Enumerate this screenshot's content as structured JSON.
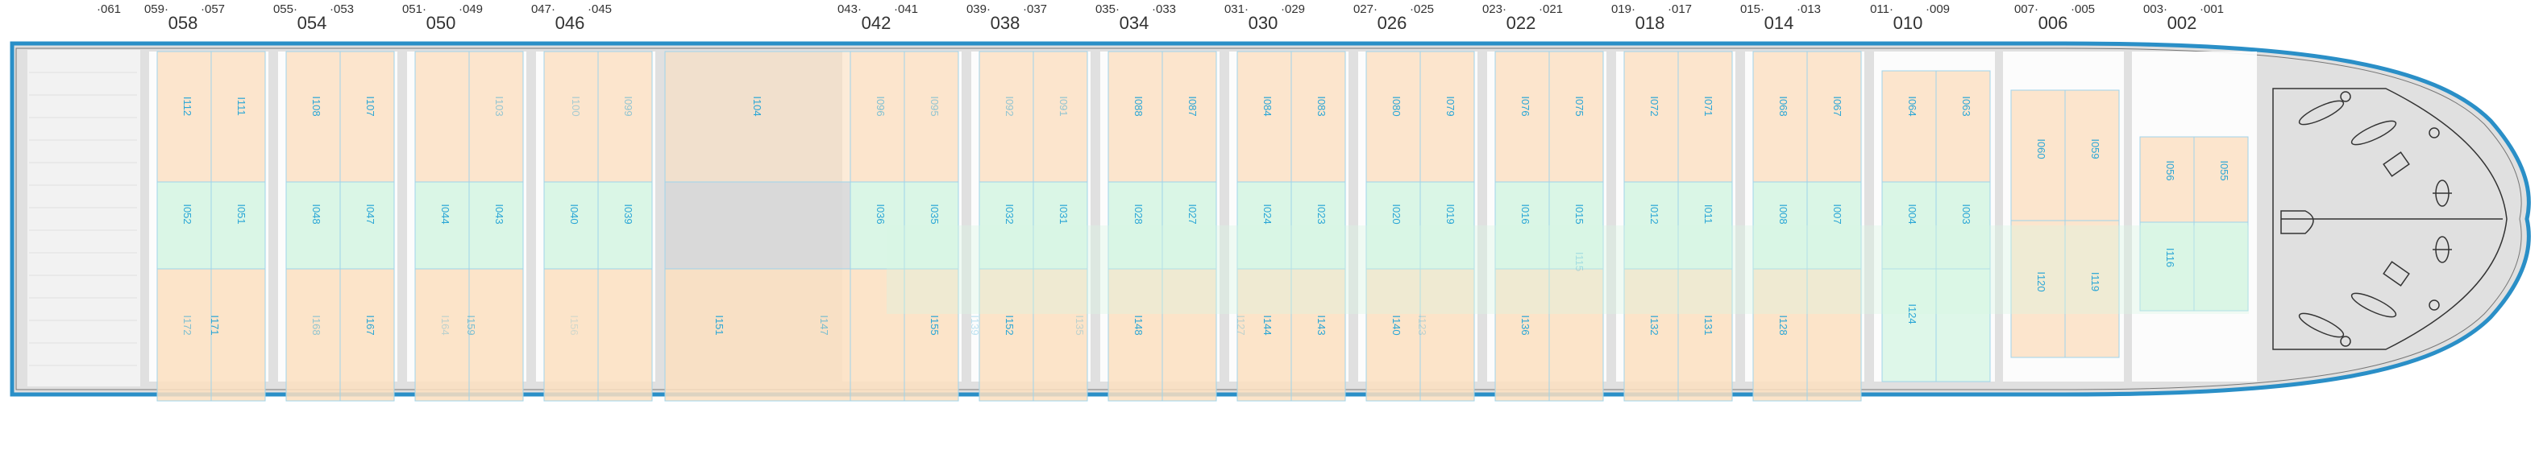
{
  "colors": {
    "hull_fill": "#e0e0e0",
    "hull_stroke": "#2a8fc7",
    "hull_outline": "#777777",
    "hold_fill": "#f2f2f2",
    "frame": "#ffffff",
    "cell_orange": "#fbdfc0",
    "cell_green": "#d6f5e3",
    "cell_gray": "#d8d8d8",
    "cell_border": "#9fd4ea",
    "label": "#2aa6d6"
  },
  "bay_header": {
    "left_most": "061",
    "groups": [
      {
        "left": "059",
        "right": "057",
        "main": "058"
      },
      {
        "left": "055",
        "right": "053",
        "main": "054"
      },
      {
        "left": "051",
        "right": "049",
        "main": "050"
      },
      {
        "left": "047",
        "right": "045",
        "main": "046"
      },
      {
        "left": "043",
        "right": "041",
        "main": "042"
      },
      {
        "left": "039",
        "right": "037",
        "main": "038"
      },
      {
        "left": "035",
        "right": "033",
        "main": "034"
      },
      {
        "left": "031",
        "right": "029",
        "main": "030"
      },
      {
        "left": "027",
        "right": "025",
        "main": "026"
      },
      {
        "left": "023",
        "right": "021",
        "main": "022"
      },
      {
        "left": "019",
        "right": "017",
        "main": "018"
      },
      {
        "left": "015",
        "right": "013",
        "main": "014"
      },
      {
        "left": "011",
        "right": "009",
        "main": "010"
      },
      {
        "left": "007",
        "right": "005",
        "main": "006"
      },
      {
        "left": "003",
        "right": "001",
        "main": "002"
      }
    ]
  },
  "slot_rows": {
    "top": [
      "I112",
      "I111",
      "I108",
      "I107",
      "I103",
      "I100",
      "I099",
      "I104",
      "I096",
      "I095",
      "I092",
      "I091",
      "I088",
      "I087",
      "I084",
      "I083",
      "I080",
      "I079",
      "I076",
      "I075",
      "I072",
      "I071",
      "I068",
      "I067",
      "I064",
      "I063",
      "I060",
      "I059",
      "I056",
      "I055"
    ],
    "middle": [
      "I052",
      "I051",
      "I048",
      "I047",
      "I044",
      "I043",
      "I040",
      "I039",
      "I036",
      "I035",
      "I032",
      "I031",
      "I028",
      "I027",
      "I024",
      "I023",
      "I020",
      "I019",
      "I016",
      "I015",
      "I012",
      "I011",
      "I008",
      "I007",
      "I004",
      "I003",
      "I116"
    ],
    "bottom": [
      "I172",
      "I171",
      "I168",
      "I167",
      "I164",
      "I159",
      "I156",
      "I151",
      "I147",
      "I155",
      "I139",
      "I152",
      "I135",
      "I148",
      "I127",
      "I144",
      "I143",
      "I140",
      "I123",
      "I136",
      "I115",
      "I132",
      "I131",
      "I128",
      "I124",
      "I120",
      "I119"
    ]
  }
}
